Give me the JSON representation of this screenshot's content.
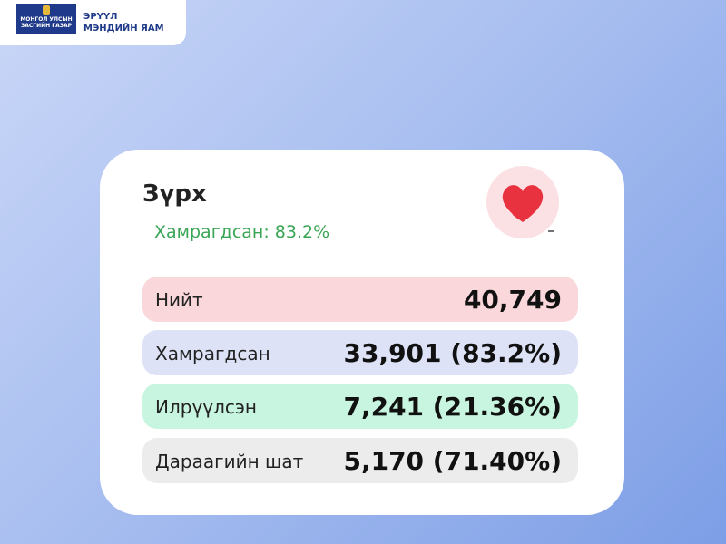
{
  "header": {
    "logo_text": [
      "МОНГОЛ УЛСЫН",
      "ЗАСГИЙН ГАЗАР"
    ],
    "ministry": [
      "ЭРҮҮЛ",
      "МЭНДИЙН ЯАМ"
    ]
  },
  "card": {
    "title": "Зүрх",
    "subtitle": "Хамрагдсан: 83.2%",
    "rows": [
      {
        "label": "Нийт",
        "value": "40,749"
      },
      {
        "label": "Хамрагдсан",
        "value": "33,901 (83.2%)"
      },
      {
        "label": "Илрүүлсэн",
        "value": "7,241 (21.36%)"
      },
      {
        "label": "Дараагийн шат",
        "value": "5,170 (71.40%)"
      }
    ]
  }
}
